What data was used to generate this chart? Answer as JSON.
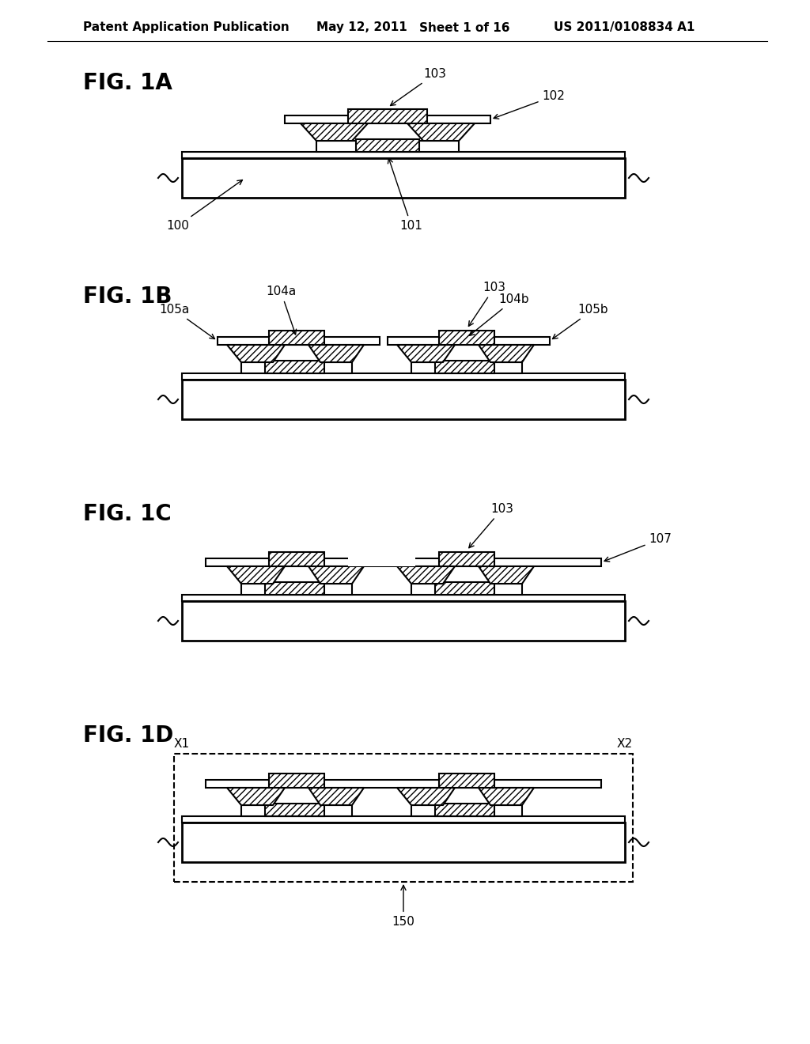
{
  "title": "Patent Application Publication",
  "date": "May 12, 2011",
  "sheet": "Sheet 1 of 16",
  "patent_num": "US 2011/0108834 A1",
  "bg_color": "#ffffff",
  "line_color": "#000000",
  "hatch_color": "#000000",
  "fig_labels": [
    "FIG. 1A",
    "FIG. 1B",
    "FIG. 1C",
    "FIG. 1D"
  ],
  "fig_label_fontsize": 20,
  "header_fontsize": 11,
  "annotation_fontsize": 11
}
